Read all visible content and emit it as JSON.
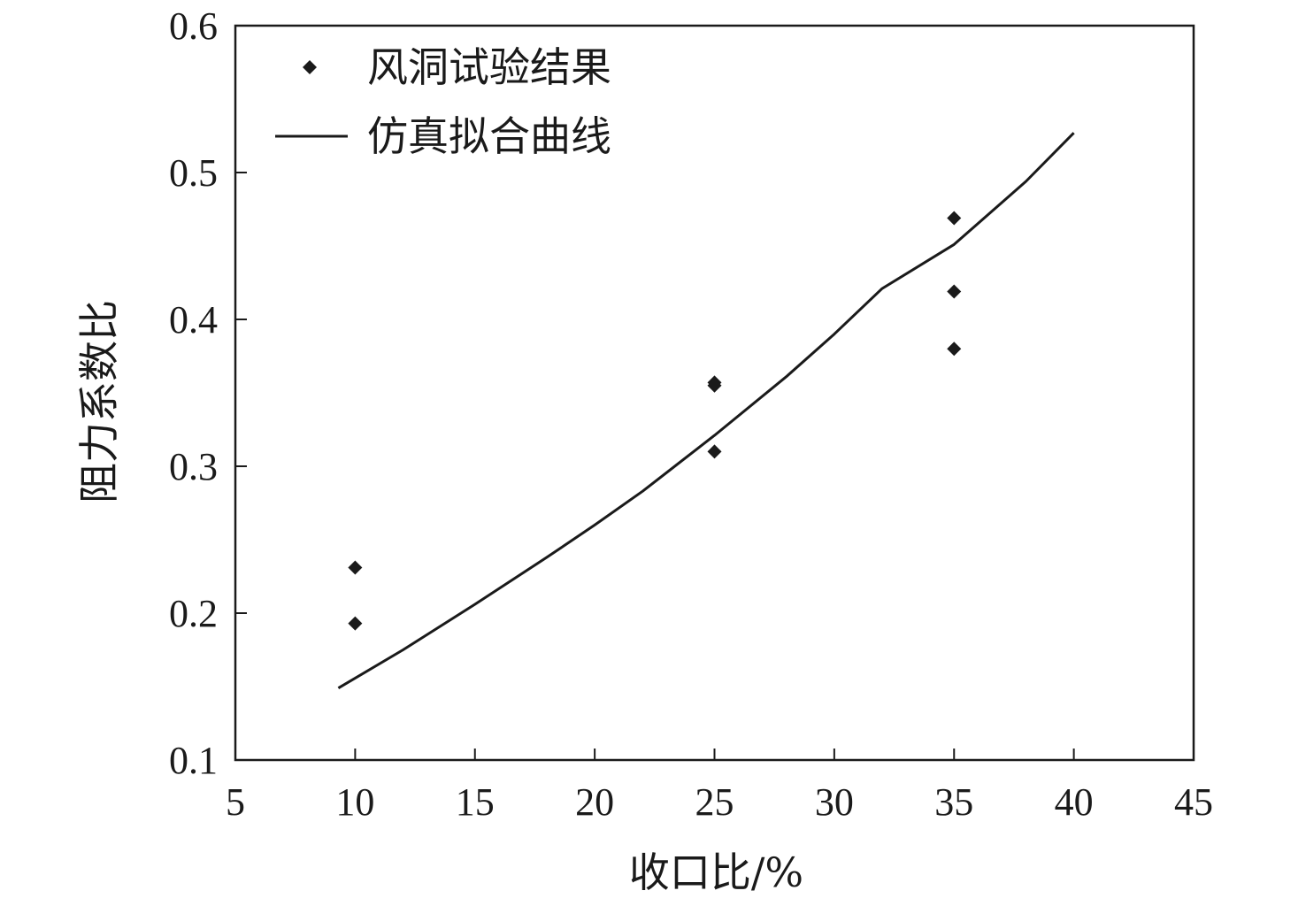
{
  "chart_data": {
    "type": "scatter",
    "xlabel": "收口比/%",
    "ylabel": "阻力系数比",
    "xlim": [
      5,
      45
    ],
    "ylim": [
      0.1,
      0.6
    ],
    "xticks": [
      5,
      10,
      15,
      20,
      25,
      30,
      35,
      40,
      45
    ],
    "yticks": [
      0.1,
      0.2,
      0.3,
      0.4,
      0.5,
      0.6
    ],
    "xtick_labels": [
      "5",
      "10",
      "15",
      "20",
      "25",
      "30",
      "35",
      "40",
      "45"
    ],
    "ytick_labels": [
      "0.1",
      "0.2",
      "0.3",
      "0.4",
      "0.5",
      "0.6"
    ],
    "grid": false,
    "legend_position": "top-left",
    "series": [
      {
        "name": "风洞试验结果",
        "kind": "scatter",
        "marker": "diamond",
        "color": "#1a1a1a",
        "x": [
          10,
          10,
          25,
          25,
          25,
          35,
          35,
          35
        ],
        "y": [
          0.231,
          0.193,
          0.357,
          0.355,
          0.31,
          0.469,
          0.419,
          0.38
        ]
      },
      {
        "name": "仿真拟合曲线",
        "kind": "line",
        "color": "#1a1a1a",
        "x": [
          9.3,
          12,
          15,
          18,
          20,
          22,
          25,
          28,
          30,
          32,
          35,
          38,
          40
        ],
        "y": [
          0.149,
          0.175,
          0.206,
          0.238,
          0.26,
          0.283,
          0.321,
          0.361,
          0.39,
          0.421,
          0.451,
          0.494,
          0.527
        ]
      }
    ]
  }
}
